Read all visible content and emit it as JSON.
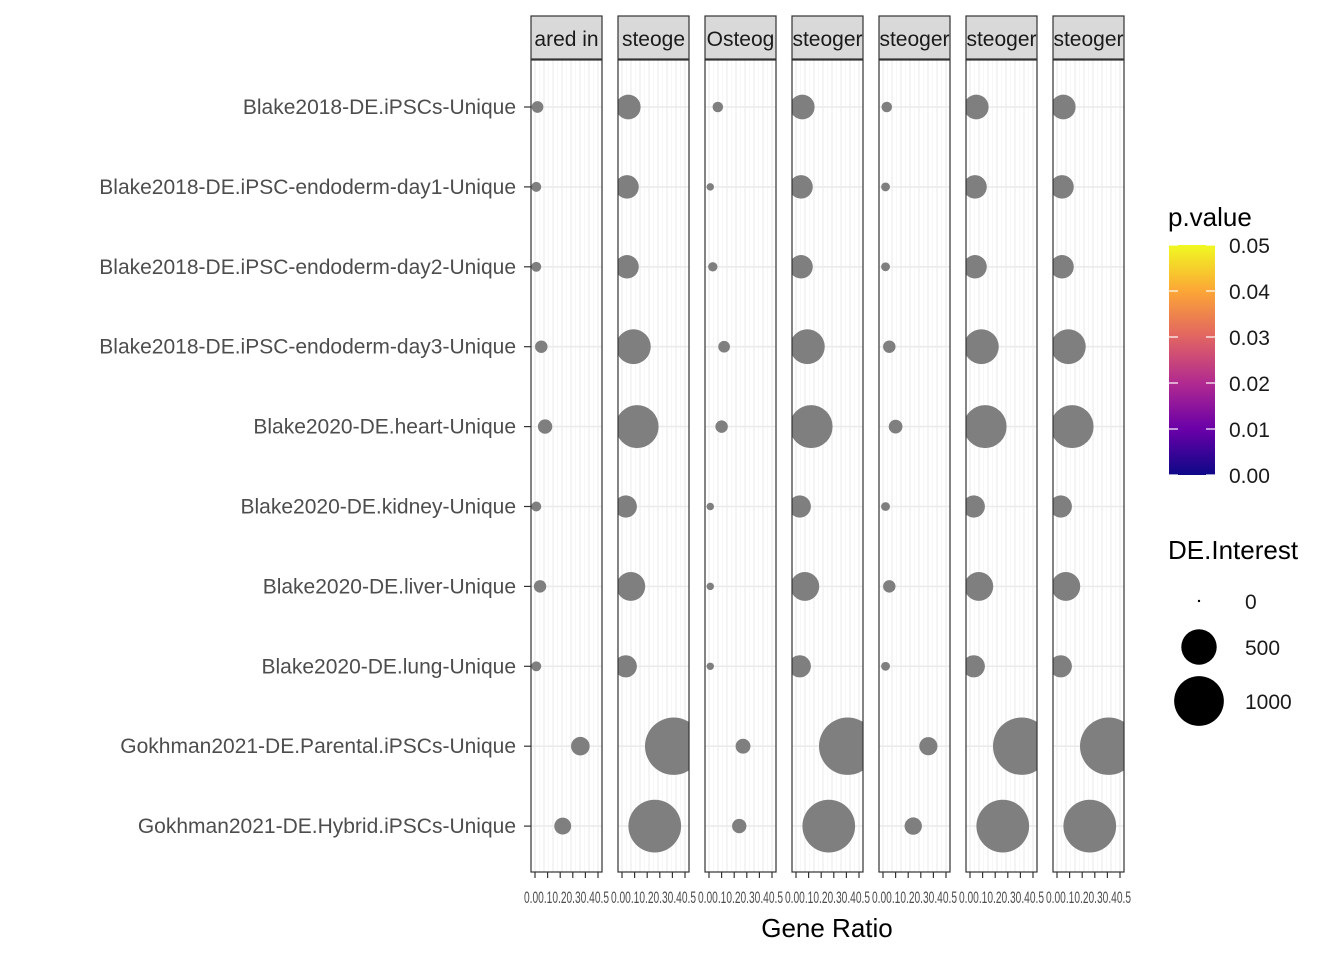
{
  "chart_data": {
    "type": "scatter",
    "subtype": "faceted-bubble",
    "xlabel": "Gene Ratio",
    "x_tick_label_text": "0.00.10.20.30.40.5",
    "categories": [
      "Blake2018-DE.iPSCs-Unique",
      "Blake2018-DE.iPSC-endoderm-day1-Unique",
      "Blake2018-DE.iPSC-endoderm-day2-Unique",
      "Blake2018-DE.iPSC-endoderm-day3-Unique",
      "Blake2020-DE.heart-Unique",
      "Blake2020-DE.kidney-Unique",
      "Blake2020-DE.liver-Unique",
      "Blake2020-DE.lung-Unique",
      "Gokhman2021-DE.Parental.iPSCs-Unique",
      "Gokhman2021-DE.Hybrid.iPSCs-Unique"
    ],
    "x_range": [
      0,
      0.5
    ],
    "facets": [
      {
        "label": "ared in",
        "x": [
          0.02,
          0.01,
          0.01,
          0.05,
          0.08,
          0.01,
          0.04,
          0.01,
          0.36,
          0.22
        ],
        "size": [
          25,
          15,
          15,
          30,
          45,
          15,
          30,
          15,
          90,
          70
        ]
      },
      {
        "label": "steoge",
        "x": [
          0.05,
          0.04,
          0.04,
          0.09,
          0.12,
          0.03,
          0.07,
          0.03,
          0.41,
          0.26
        ],
        "size": [
          180,
          160,
          160,
          400,
          640,
          140,
          260,
          140,
          1200,
          1000
        ]
      },
      {
        "label": "Osteog",
        "x": [
          0.07,
          0.01,
          0.03,
          0.12,
          0.1,
          0.01,
          0.01,
          0.01,
          0.27,
          0.24
        ],
        "size": [
          18,
          5,
          12,
          25,
          30,
          5,
          5,
          5,
          50,
          45
        ]
      },
      {
        "label": "steoger",
        "x": [
          0.05,
          0.04,
          0.04,
          0.09,
          0.12,
          0.03,
          0.07,
          0.03,
          0.41,
          0.26
        ],
        "size": [
          180,
          160,
          160,
          400,
          640,
          140,
          260,
          140,
          1200,
          1000
        ]
      },
      {
        "label": "steoger",
        "x": [
          0.03,
          0.02,
          0.02,
          0.05,
          0.1,
          0.02,
          0.05,
          0.02,
          0.36,
          0.24
        ],
        "size": [
          18,
          10,
          10,
          30,
          40,
          10,
          30,
          10,
          85,
          75
        ]
      },
      {
        "label": "steoger",
        "x": [
          0.05,
          0.04,
          0.04,
          0.09,
          0.12,
          0.03,
          0.07,
          0.03,
          0.41,
          0.26
        ],
        "size": [
          180,
          160,
          160,
          400,
          640,
          140,
          260,
          140,
          1200,
          1000
        ]
      },
      {
        "label": "steoger",
        "x": [
          0.05,
          0.04,
          0.04,
          0.09,
          0.12,
          0.03,
          0.07,
          0.03,
          0.41,
          0.26
        ],
        "size": [
          180,
          160,
          160,
          400,
          640,
          140,
          260,
          140,
          1200,
          1000
        ]
      }
    ],
    "point_color": "#7f7f7f",
    "legend_pvalue": {
      "title": "p.value",
      "ticks": [
        "0.05",
        "0.04",
        "0.03",
        "0.02",
        "0.01",
        "0.00"
      ],
      "range": [
        0,
        0.05
      ],
      "colormap": "plasma"
    },
    "legend_size": {
      "title": "DE.Interest",
      "labels": [
        "0",
        "500",
        "1000"
      ],
      "values": [
        0,
        500,
        1000
      ]
    },
    "grid": true,
    "legend_position": "right"
  }
}
